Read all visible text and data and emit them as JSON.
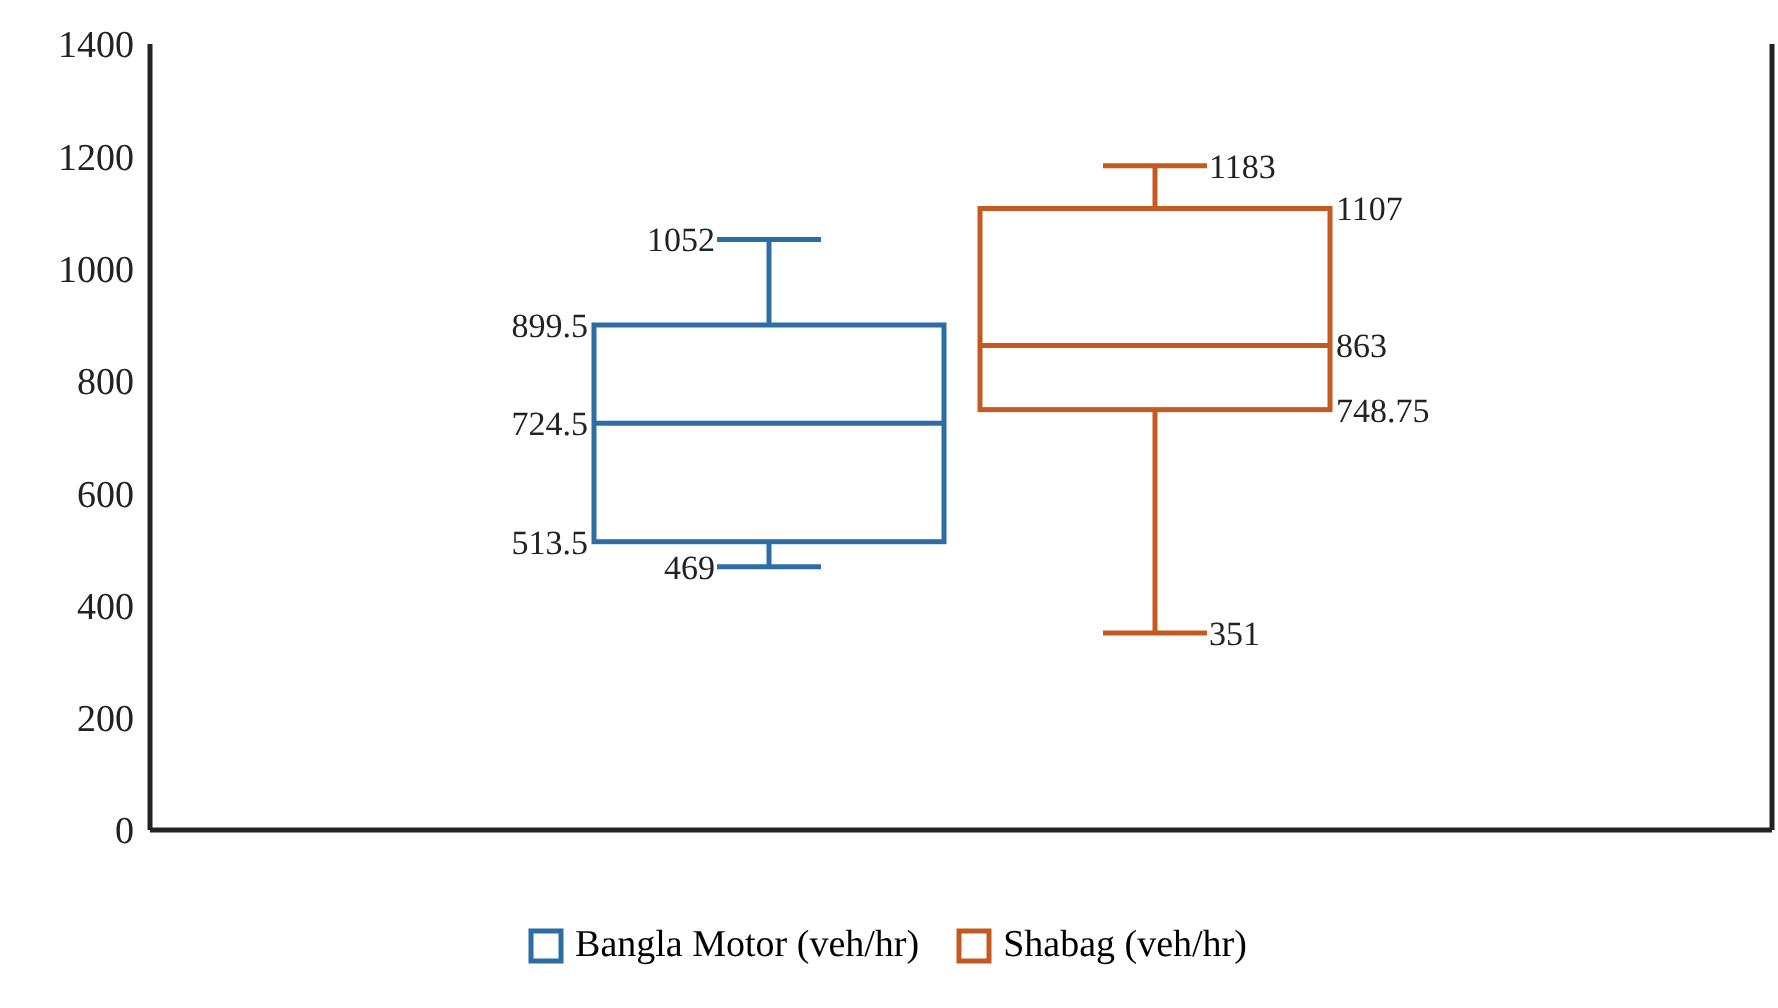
{
  "chart_data": {
    "type": "box",
    "categories": [
      null
    ],
    "series": [
      {
        "name": "Bangla Motor (veh/hr)",
        "color": "#2e6da4",
        "boxes": [
          {
            "low": 469,
            "q1": 513.5,
            "median": 724.5,
            "q3": 899.5,
            "high": 1052
          }
        ]
      },
      {
        "name": "Shabag (veh/hr)",
        "color": "#c55a20",
        "boxes": [
          {
            "low": 351,
            "q1": 748.75,
            "median": 863,
            "q3": 1107,
            "high": 1183
          }
        ]
      }
    ],
    "annotations": [
      "1052",
      "899.5",
      "724.5",
      "513.5",
      "469",
      "1183",
      "1107",
      "863",
      "748.75",
      "351"
    ],
    "ylim": [
      0,
      1400
    ],
    "yticks": [
      0,
      200,
      400,
      600,
      800,
      1000,
      1200,
      1400
    ],
    "legend": "bottom",
    "grid": false
  }
}
